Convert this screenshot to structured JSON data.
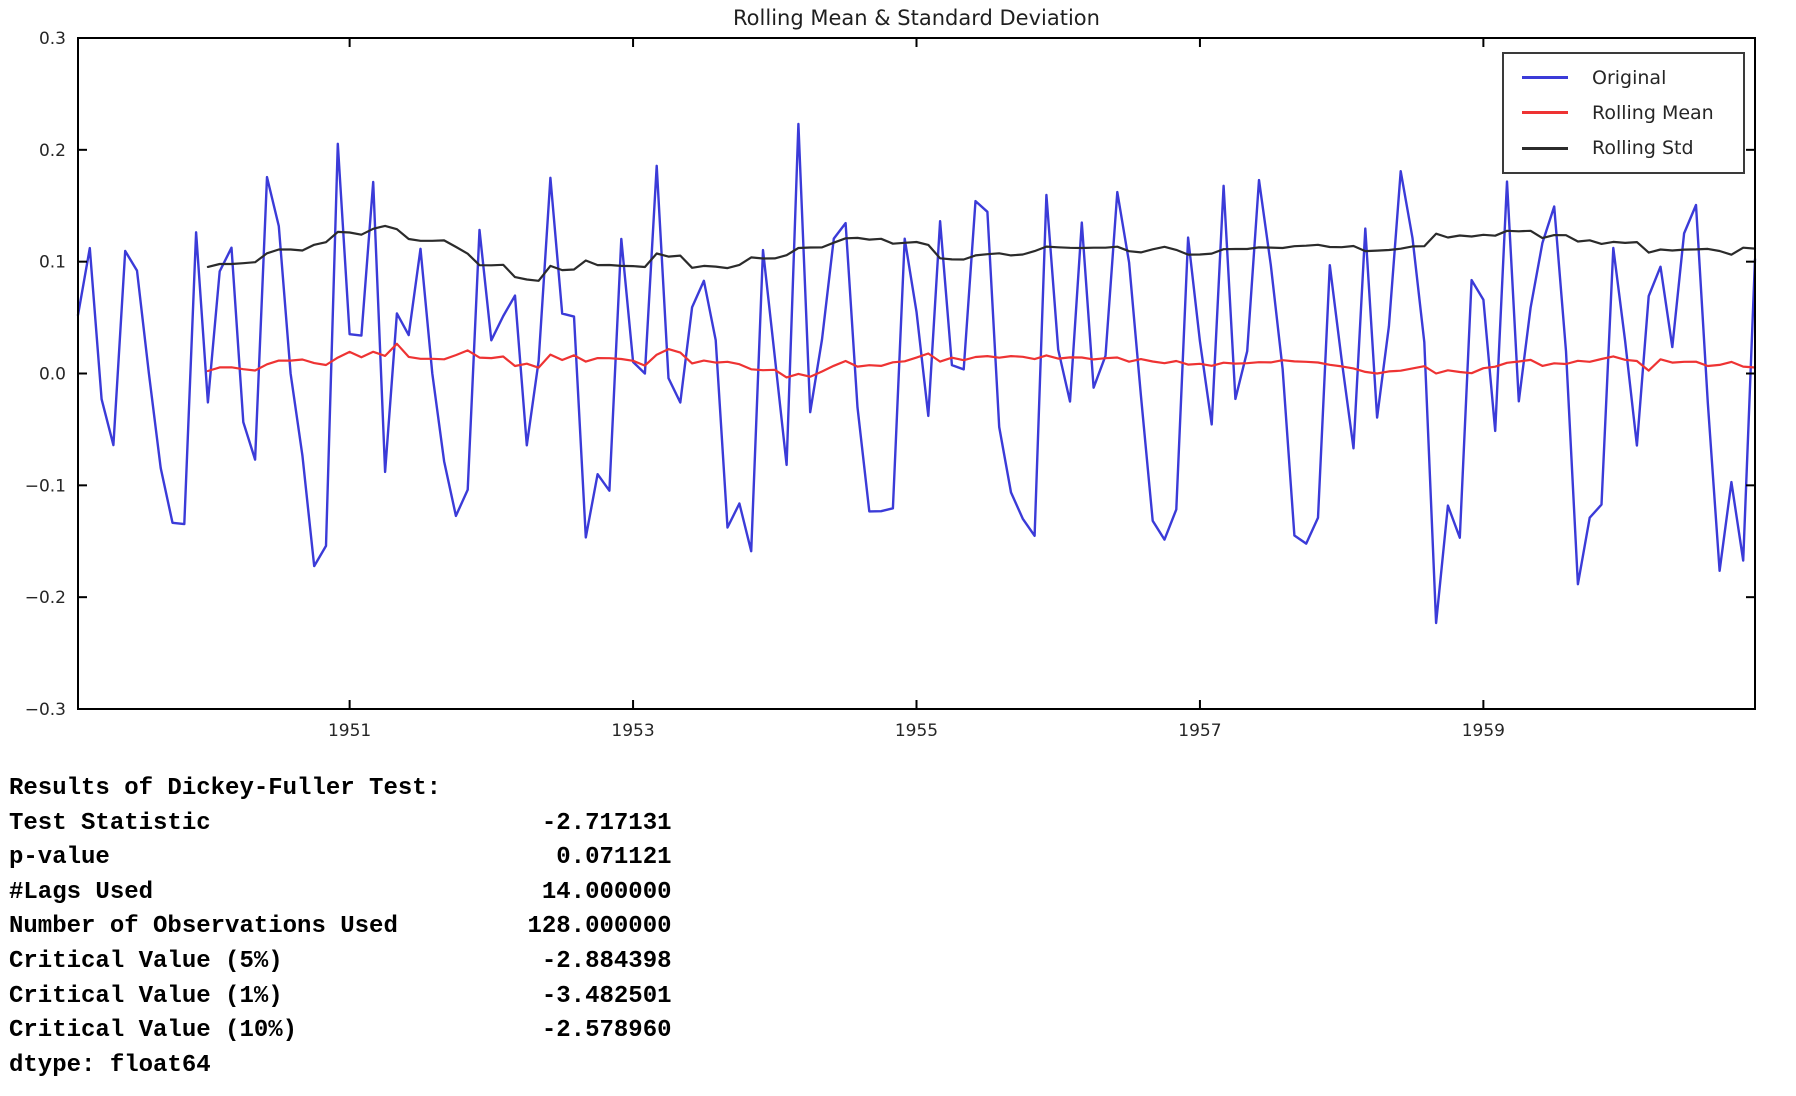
{
  "chart_data": {
    "type": "line",
    "title": "Rolling Mean & Standard Deviation",
    "xlabel": "",
    "ylabel": "",
    "x_axis": {
      "unit": "monthly time series",
      "start": "1949-02",
      "end": "1960-12",
      "tick_years": [
        1951,
        1953,
        1955,
        1957,
        1959
      ]
    },
    "ylim": [
      -0.3,
      0.3
    ],
    "y_ticks": [
      0.3,
      0.2,
      0.1,
      0.0,
      -0.1,
      -0.2,
      -0.3
    ],
    "grid": false,
    "rolling_window": 12,
    "legend": {
      "position": "upper right",
      "entries": [
        {
          "label": "Original",
          "color": "#3b3bd8"
        },
        {
          "label": "Rolling Mean",
          "color": "#ee3333"
        },
        {
          "label": "Rolling Std",
          "color": "#2b2b2b"
        }
      ]
    },
    "series": [
      {
        "name": "Original",
        "color": "#3b3bd8",
        "description": "log-differenced monthly series, Feb 1949 - Dec 1960",
        "values": [
          0.0522,
          0.1121,
          -0.023,
          -0.064,
          0.1095,
          0.092,
          0.0,
          -0.0845,
          -0.1335,
          -0.1347,
          0.1263,
          -0.0258,
          0.0914,
          0.1125,
          -0.0435,
          -0.077,
          0.1756,
          0.1318,
          0.0,
          -0.0732,
          -0.1722,
          -0.1542,
          0.2054,
          0.0351,
          0.0339,
          0.1712,
          -0.088,
          0.0537,
          0.0343,
          0.1115,
          0.0,
          -0.0784,
          -0.1273,
          -0.104,
          0.1284,
          0.0297,
          0.0513,
          0.0697,
          -0.0642,
          0.011,
          0.175,
          0.0536,
          0.0509,
          -0.1466,
          -0.09,
          -0.1048,
          0.1204,
          0.0103,
          0.0,
          0.1857,
          -0.0042,
          -0.0259,
          0.0593,
          0.0829,
          0.0299,
          -0.1377,
          -0.1162,
          -0.1589,
          0.1103,
          0.0148,
          -0.0817,
          0.2231,
          -0.0346,
          0.0304,
          0.1206,
          0.1345,
          -0.0303,
          -0.1233,
          -0.1231,
          -0.1205,
          0.1205,
          0.0552,
          -0.0379,
          0.1362,
          0.0075,
          0.0037,
          0.1542,
          0.1446,
          -0.0478,
          -0.1063,
          -0.1299,
          -0.1451,
          0.1596,
          0.0214,
          -0.025,
          0.1349,
          -0.0127,
          0.0158,
          0.1622,
          0.0992,
          -0.0196,
          -0.1317,
          -0.1485,
          -0.1215,
          0.1215,
          0.029,
          -0.0455,
          0.1678,
          -0.0227,
          0.0199,
          0.1729,
          0.097,
          0.0043,
          -0.1449,
          -0.1521,
          -0.129,
          0.0968,
          0.0118,
          -0.0669,
          0.1296,
          -0.0394,
          0.0422,
          0.1809,
          0.1211,
          0.0281,
          -0.2231,
          -0.1181,
          -0.1468,
          0.0835,
          0.066,
          -0.0513,
          0.1716,
          -0.0249,
          0.0588,
          0.1167,
          0.1493,
          0.0199,
          -0.1884,
          -0.1289,
          -0.1172,
          0.1122,
          0.0292,
          -0.0644,
          0.0692,
          0.0955,
          0.0236,
          0.1253,
          0.1507,
          -0.0261,
          -0.1764,
          -0.0971,
          -0.1673,
          0.1023
        ]
      },
      {
        "name": "Rolling Mean",
        "color": "#ee3333",
        "derived": "rolling_mean_of_Original",
        "window": 12
      },
      {
        "name": "Rolling Std",
        "color": "#2b2b2b",
        "derived": "rolling_std_of_Original",
        "window": 12
      }
    ]
  },
  "df_output": {
    "header": "Results of Dickey-Fuller Test:",
    "rows": [
      {
        "label": "Test Statistic",
        "value": "-2.717131"
      },
      {
        "label": "p-value",
        "value": "0.071121"
      },
      {
        "label": "#Lags Used",
        "value": "14.000000"
      },
      {
        "label": "Number of Observations Used",
        "value": "128.000000"
      },
      {
        "label": "Critical Value (5%)",
        "value": "-2.884398"
      },
      {
        "label": "Critical Value (1%)",
        "value": "-3.482501"
      },
      {
        "label": "Critical Value (10%)",
        "value": "-2.578960"
      }
    ],
    "footer": "dtype: float64"
  }
}
